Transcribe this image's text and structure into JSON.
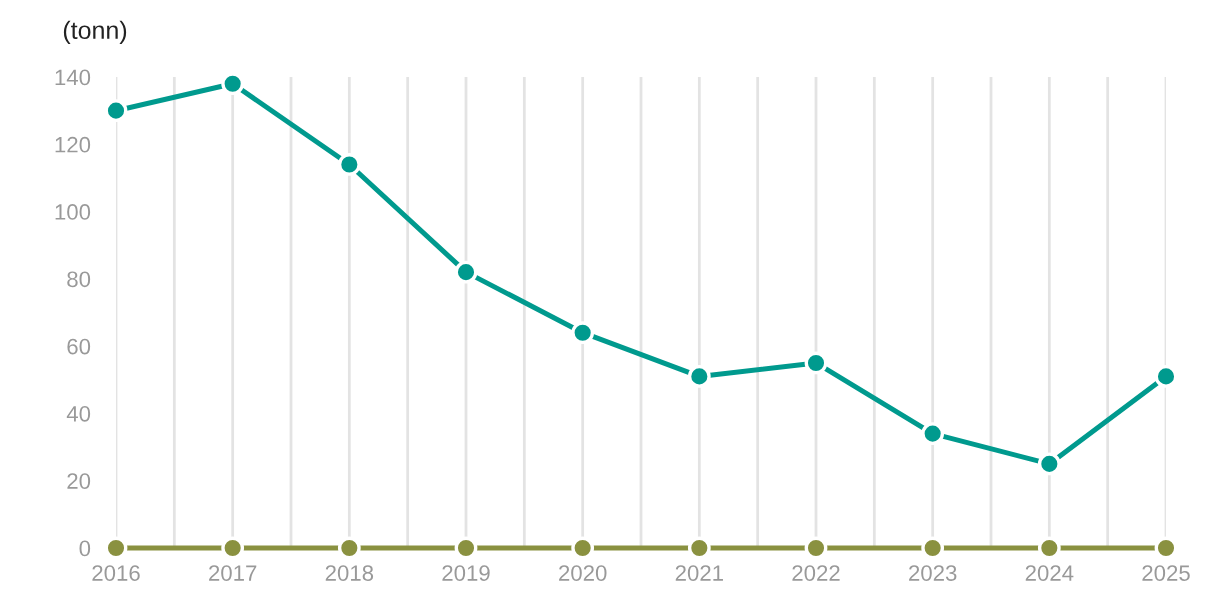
{
  "chart_data": {
    "type": "line",
    "ylabel": "(tonn)",
    "x": [
      2016,
      2017,
      2018,
      2019,
      2020,
      2021,
      2022,
      2023,
      2024,
      2025
    ],
    "series": [
      {
        "color": "#009a8e",
        "values": [
          130,
          138,
          114,
          82,
          64,
          51,
          55,
          34,
          25,
          51
        ]
      },
      {
        "color": "#8a9140",
        "values": [
          0,
          0,
          0,
          0,
          0,
          0,
          0,
          0,
          0,
          0
        ]
      }
    ],
    "xlim": [
      2016,
      2025
    ],
    "xticks": [
      2016,
      {
        "value": 2016.5,
        "label": null
      },
      2017,
      {
        "value": 2017.5,
        "label": null
      },
      2018,
      {
        "value": 2018.5,
        "label": null
      },
      2019,
      {
        "value": 2019.5,
        "label": null
      },
      2020,
      {
        "value": 2020.5,
        "label": null
      },
      2021,
      {
        "value": 2021.5,
        "label": null
      },
      2022,
      {
        "value": 2022.5,
        "label": null
      },
      2023,
      {
        "value": 2023.5,
        "label": null
      },
      2024,
      {
        "value": 2024.5,
        "label": null
      },
      2025
    ],
    "ylim": [
      0,
      140
    ],
    "yticks": [
      0,
      20,
      40,
      60,
      80,
      100,
      120,
      140
    ],
    "grid": "x",
    "marker": "circle",
    "line_style": "solid",
    "legend": false
  }
}
